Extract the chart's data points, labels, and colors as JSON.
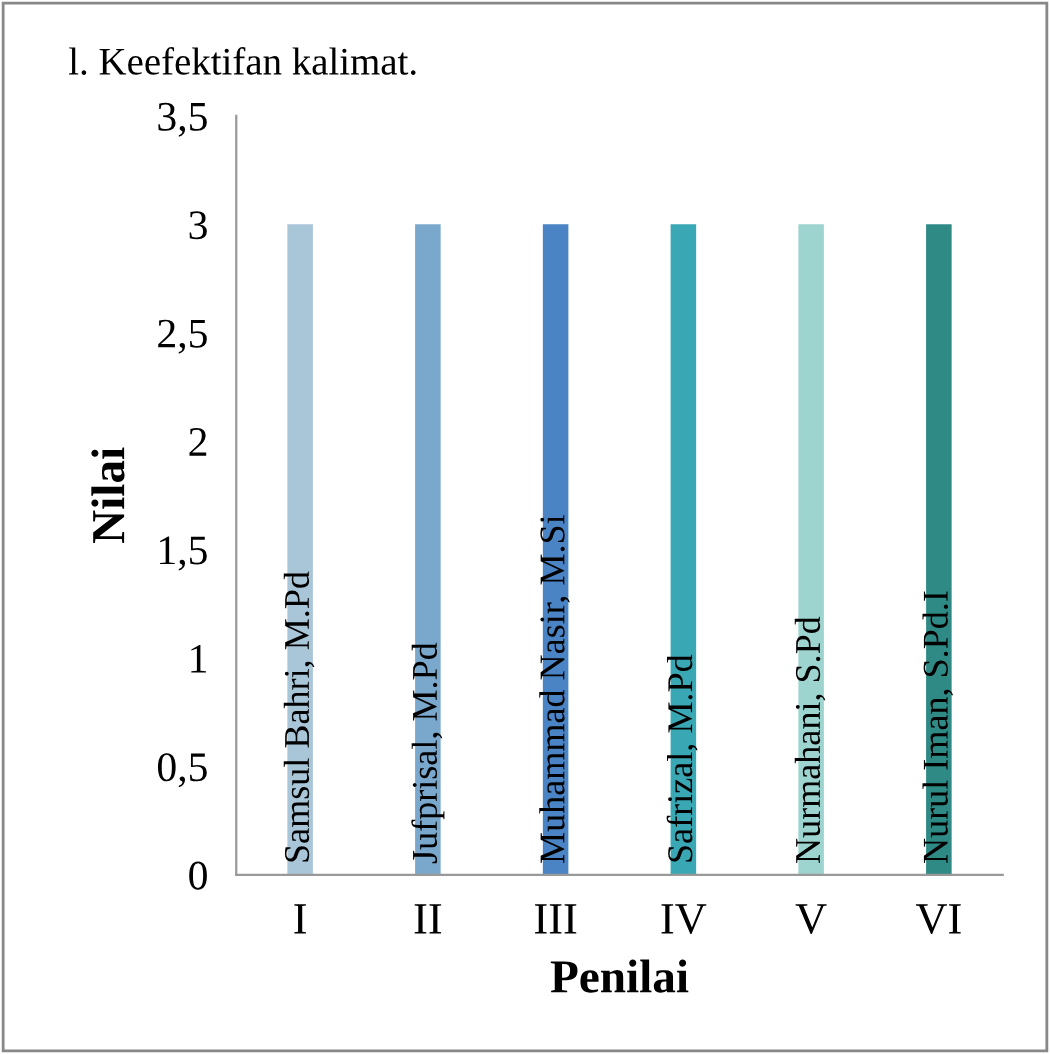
{
  "chart_data": {
    "type": "bar",
    "title": "l. Keefektifan kalimat.",
    "xlabel": "Penilai",
    "ylabel": "Nilai",
    "categories": [
      "I",
      "II",
      "III",
      "IV",
      "V",
      "VI"
    ],
    "values": [
      3,
      3,
      3,
      3,
      3,
      3
    ],
    "colors": [
      "#a9c6d8",
      "#7aa8cc",
      "#4a84c4",
      "#3aa8b4",
      "#9ed4d0",
      "#2f8a86"
    ],
    "ylim": [
      0,
      3.5
    ],
    "yticks": [
      {
        "value": 0,
        "label": "0"
      },
      {
        "value": 0.5,
        "label": "0,5"
      },
      {
        "value": 1,
        "label": "1"
      },
      {
        "value": 1.5,
        "label": "1,5"
      },
      {
        "value": 2,
        "label": "2"
      },
      {
        "value": 2.5,
        "label": "2,5"
      },
      {
        "value": 3,
        "label": "3"
      },
      {
        "value": 3.5,
        "label": "3,5"
      }
    ],
    "grid": false,
    "annotations": [
      {
        "text": "Samsul Bahri, M.Pd",
        "x": "I",
        "y": 0
      },
      {
        "text": "Jufprisal, M.Pd",
        "x": "II",
        "y": 0
      },
      {
        "text": "Muhammad Nasir, M.Si",
        "x": "III",
        "y": 0
      },
      {
        "text": "Safrizal, M.Pd",
        "x": "IV",
        "y": 0
      },
      {
        "text": "Nurmahani, S.Pd",
        "x": "V",
        "y": 0
      },
      {
        "text": "Nurul Iman, S.Pd.I",
        "x": "VI",
        "y": 0
      }
    ]
  }
}
